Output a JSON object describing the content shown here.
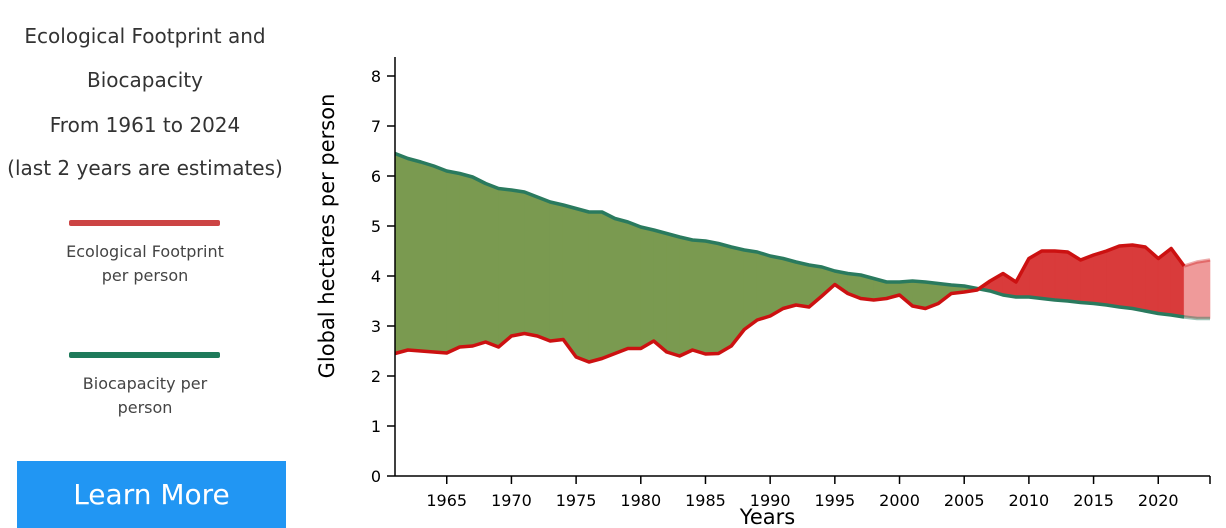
{
  "panel": {
    "title_lines": [
      "Ecological Footprint and",
      "Biocapacity",
      "From 1961 to 2024",
      "(last 2 years are estimates)"
    ],
    "legend": [
      {
        "label": "Ecological Footprint per person",
        "color": "#cc4444"
      },
      {
        "label": "Biocapacity per person",
        "color": "#1e7a5a"
      }
    ],
    "learn_more_label": "Learn More"
  },
  "chart_data": {
    "type": "area",
    "xlabel": "Years",
    "ylabel": "Global hectares per person",
    "xlim": [
      1961,
      2024
    ],
    "ylim": [
      0,
      8
    ],
    "xticks": [
      1965,
      1970,
      1975,
      1980,
      1985,
      1990,
      1995,
      2000,
      2005,
      2010,
      2015,
      2020
    ],
    "yticks": [
      0,
      1,
      2,
      3,
      4,
      5,
      6,
      7,
      8
    ],
    "estimate_start_year": 2022,
    "colors": {
      "footprint_line": "#cc1111",
      "biocapacity_line": "#2a7a5e",
      "deficit_fill": "#d93b3b",
      "reserve_fill": "#7a9a50",
      "estimate_fill": "#ef9a9a"
    },
    "series": [
      {
        "name": "Ecological Footprint per person",
        "x": [
          1961,
          1962,
          1963,
          1964,
          1965,
          1966,
          1967,
          1968,
          1969,
          1970,
          1971,
          1972,
          1973,
          1974,
          1975,
          1976,
          1977,
          1978,
          1979,
          1980,
          1981,
          1982,
          1983,
          1984,
          1985,
          1986,
          1987,
          1988,
          1989,
          1990,
          1991,
          1992,
          1993,
          1994,
          1995,
          1996,
          1997,
          1998,
          1999,
          2000,
          2001,
          2002,
          2003,
          2004,
          2005,
          2006,
          2007,
          2008,
          2009,
          2010,
          2011,
          2012,
          2013,
          2014,
          2015,
          2016,
          2017,
          2018,
          2019,
          2020,
          2021,
          2022,
          2023,
          2024
        ],
        "values": [
          2.45,
          2.52,
          2.5,
          2.48,
          2.46,
          2.58,
          2.6,
          2.68,
          2.58,
          2.8,
          2.85,
          2.8,
          2.7,
          2.73,
          2.38,
          2.28,
          2.35,
          2.45,
          2.55,
          2.55,
          2.7,
          2.48,
          2.4,
          2.52,
          2.44,
          2.45,
          2.6,
          2.93,
          3.12,
          3.2,
          3.35,
          3.42,
          3.38,
          3.6,
          3.83,
          3.65,
          3.55,
          3.52,
          3.55,
          3.62,
          3.4,
          3.35,
          3.45,
          3.65,
          3.68,
          3.72,
          3.9,
          4.05,
          3.88,
          4.35,
          4.5,
          4.5,
          4.48,
          4.32,
          4.42,
          4.5,
          4.6,
          4.62,
          4.58,
          4.35,
          4.55,
          4.2,
          4.28,
          4.32
        ]
      },
      {
        "name": "Biocapacity per person",
        "x": [
          1961,
          1962,
          1963,
          1964,
          1965,
          1966,
          1967,
          1968,
          1969,
          1970,
          1971,
          1972,
          1973,
          1974,
          1975,
          1976,
          1977,
          1978,
          1979,
          1980,
          1981,
          1982,
          1983,
          1984,
          1985,
          1986,
          1987,
          1988,
          1989,
          1990,
          1991,
          1992,
          1993,
          1994,
          1995,
          1996,
          1997,
          1998,
          1999,
          2000,
          2001,
          2002,
          2003,
          2004,
          2005,
          2006,
          2007,
          2008,
          2009,
          2010,
          2011,
          2012,
          2013,
          2014,
          2015,
          2016,
          2017,
          2018,
          2019,
          2020,
          2021,
          2022,
          2023,
          2024
        ],
        "values": [
          6.45,
          6.35,
          6.28,
          6.2,
          6.1,
          6.05,
          5.98,
          5.85,
          5.75,
          5.72,
          5.68,
          5.58,
          5.48,
          5.42,
          5.35,
          5.28,
          5.28,
          5.15,
          5.08,
          4.98,
          4.92,
          4.85,
          4.78,
          4.72,
          4.7,
          4.65,
          4.58,
          4.52,
          4.48,
          4.4,
          4.35,
          4.28,
          4.22,
          4.18,
          4.1,
          4.05,
          4.02,
          3.95,
          3.88,
          3.88,
          3.9,
          3.88,
          3.85,
          3.82,
          3.8,
          3.75,
          3.7,
          3.62,
          3.58,
          3.58,
          3.55,
          3.52,
          3.5,
          3.47,
          3.45,
          3.42,
          3.38,
          3.35,
          3.3,
          3.25,
          3.22,
          3.18,
          3.15,
          3.15
        ]
      }
    ]
  }
}
